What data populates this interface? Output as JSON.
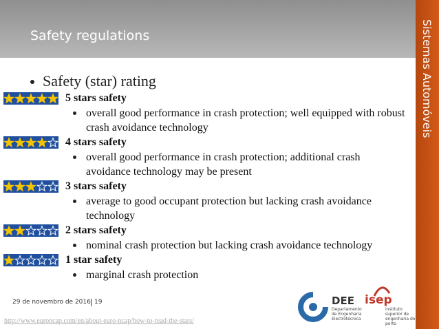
{
  "header": {
    "title": "Safety regulations"
  },
  "side_label": "Sistemas Automóveis",
  "main_bullet": "Safety (star) rating",
  "ratings": [
    {
      "stars": 5,
      "heading": "5 stars safety",
      "description": "overall good performance in crash protection; well equipped with robust crash avoidance technology"
    },
    {
      "stars": 4,
      "heading": "4 stars safety",
      "description": "overall good performance in crash protection; additional crash avoidance technology may be present"
    },
    {
      "stars": 3,
      "heading": "3 stars safety",
      "description": "average to good occupant protection but lacking crash avoidance technology"
    },
    {
      "stars": 2,
      "heading": "2 stars safety",
      "description": "nominal crash protection but lacking crash avoidance technology"
    },
    {
      "stars": 1,
      "heading": "1 star safety",
      "description": "marginal crash protection"
    }
  ],
  "footer": {
    "date": "29 de novembro de 2016",
    "page": "19",
    "url": "http://www.euroncap.com/en/about-euro-ncap/how-to-read-the-stars/"
  },
  "logos": {
    "dee": {
      "abbr": "DEE",
      "lines": [
        "Departamento",
        "de Engenharia",
        "Electrotécnica"
      ]
    },
    "isep": {
      "abbr": "isep",
      "lines": [
        "instituto",
        "superior de",
        "engenharia do",
        "porto"
      ]
    }
  }
}
